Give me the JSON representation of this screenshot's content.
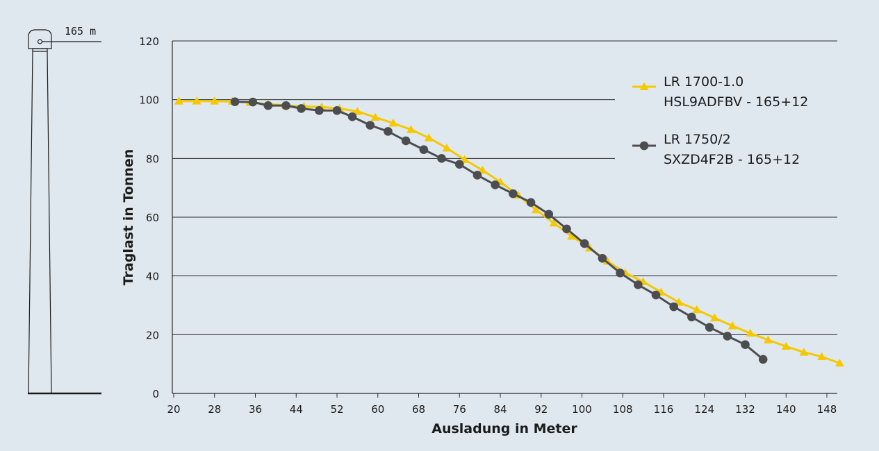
{
  "tower": {
    "height_label": "165 m",
    "icon": "crane-tower-icon"
  },
  "chart_data": {
    "type": "line",
    "xlabel": "Ausladung in Meter",
    "ylabel": "Traglast in Tonnen",
    "xlim": [
      20,
      150
    ],
    "ylim": [
      0,
      120
    ],
    "x_ticks": [
      20,
      28,
      36,
      44,
      52,
      60,
      68,
      76,
      84,
      92,
      100,
      108,
      116,
      124,
      132,
      140,
      148
    ],
    "y_ticks": [
      0,
      20,
      40,
      60,
      80,
      100,
      120
    ],
    "grid": "horizontal",
    "legend_position": "right",
    "series": [
      {
        "name": "LR 1700-1.0\nHSL9ADFBV - 165+12",
        "legend_lines": [
          "LR 1700-1.0",
          "HSL9ADFBV - 165+12"
        ],
        "color": "#f5c800",
        "marker": "triangle",
        "points": [
          [
            21,
            99.5
          ],
          [
            24.5,
            99.5
          ],
          [
            28,
            99.5
          ],
          [
            31.5,
            99.4
          ],
          [
            35,
            99.0
          ],
          [
            38.5,
            98.5
          ],
          [
            42,
            98.0
          ],
          [
            45.5,
            97.7
          ],
          [
            49,
            97.5
          ],
          [
            52.5,
            97.0
          ],
          [
            56,
            96.0
          ],
          [
            59.5,
            94.0
          ],
          [
            63,
            92.0
          ],
          [
            66.5,
            89.8
          ],
          [
            70,
            87.0
          ],
          [
            73.5,
            83.5
          ],
          [
            77,
            79.6
          ],
          [
            80.5,
            76.0
          ],
          [
            84,
            72.0
          ],
          [
            87.5,
            67.5
          ],
          [
            91,
            62.5
          ],
          [
            94.5,
            58.0
          ],
          [
            98,
            53.5
          ],
          [
            101.5,
            49.5
          ],
          [
            105,
            45.0
          ],
          [
            108.5,
            41.0
          ],
          [
            112,
            38.0
          ],
          [
            115.5,
            34.5
          ],
          [
            119,
            31.0
          ],
          [
            122.5,
            28.5
          ],
          [
            126,
            25.7
          ],
          [
            129.5,
            23.0
          ],
          [
            133,
            20.5
          ],
          [
            136.5,
            18.2
          ],
          [
            140,
            16.0
          ],
          [
            143.5,
            14.0
          ],
          [
            147,
            12.5
          ],
          [
            150.5,
            10.3
          ]
        ]
      },
      {
        "name": "LR 1750/2\nSXZD4F2B - 165+12",
        "legend_lines": [
          "LR 1750/2",
          "SXZD4F2B - 165+12"
        ],
        "color": "#4c4d50",
        "marker": "circle",
        "points": [
          [
            32,
            99.3
          ],
          [
            35.5,
            99.2
          ],
          [
            38.5,
            98.0
          ],
          [
            42,
            98.0
          ],
          [
            45,
            97.0
          ],
          [
            48.5,
            96.3
          ],
          [
            52,
            96.3
          ],
          [
            55,
            94.2
          ],
          [
            58.5,
            91.3
          ],
          [
            62,
            89.2
          ],
          [
            65.5,
            86.0
          ],
          [
            69,
            83.0
          ],
          [
            72.5,
            80.0
          ],
          [
            76,
            78.0
          ],
          [
            79.5,
            74.3
          ],
          [
            83,
            71.0
          ],
          [
            86.5,
            68.0
          ],
          [
            90,
            65.0
          ],
          [
            93.5,
            61.0
          ],
          [
            97,
            56.0
          ],
          [
            100.5,
            51.0
          ],
          [
            104,
            46.0
          ],
          [
            107.5,
            41.0
          ],
          [
            111,
            37.0
          ],
          [
            114.5,
            33.5
          ],
          [
            118,
            29.5
          ],
          [
            121.5,
            26.0
          ],
          [
            125,
            22.5
          ],
          [
            128.5,
            19.5
          ],
          [
            132,
            16.6
          ],
          [
            135.5,
            11.6
          ]
        ]
      }
    ]
  }
}
